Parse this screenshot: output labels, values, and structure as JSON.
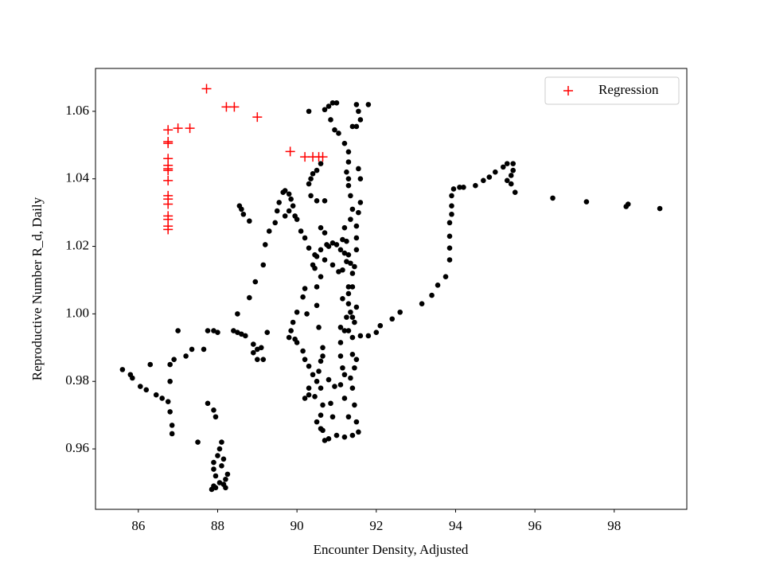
{
  "chart_data": {
    "type": "scatter",
    "xlabel": "Encounter Density, Adjusted",
    "ylabel": "Reproductive Number R_d, Daily",
    "xlim": [
      84.92,
      99.83
    ],
    "ylim": [
      0.9421,
      1.0727
    ],
    "xticks": [
      86,
      88,
      90,
      92,
      94,
      96,
      98
    ],
    "yticks": [
      0.96,
      0.98,
      {
        "value": 1,
        "label": "1.00"
      },
      1.02,
      1.04,
      1.06
    ],
    "legend": "upper right",
    "grid": false,
    "series": [
      {
        "color": "#000000",
        "marker": "o",
        "x": [
          85.6,
          85.8,
          85.85,
          86.05,
          86.2,
          86.3,
          86.45,
          86.6,
          86.75,
          86.8,
          86.85,
          86.85,
          86.8,
          86.8,
          86.9,
          87.0,
          87.2,
          87.35,
          87.5,
          87.65,
          87.75,
          87.75,
          87.9,
          87.95,
          87.9,
          87.9,
          87.95,
          87.9,
          87.85,
          88.0,
          88.05,
          88.1,
          88.05,
          88.15,
          88.2,
          88.25,
          88.15,
          88.1,
          88.2,
          87.95,
          87.9,
          88.0,
          88.4,
          88.5,
          88.6,
          88.7,
          89.0,
          88.9,
          88.9,
          89.0,
          89.15,
          89.1,
          89.25,
          88.5,
          88.8,
          88.95,
          89.15,
          89.2,
          89.3,
          89.45,
          89.5,
          89.55,
          89.65,
          89.7,
          89.8,
          89.85,
          89.9,
          89.95,
          90.0,
          90.1,
          90.2,
          90.3,
          90.45,
          88.55,
          88.6,
          88.65,
          88.8,
          89.7,
          89.8,
          89.8,
          89.85,
          89.9,
          90.0,
          90.15,
          90.2,
          90.45,
          90.4,
          90.5,
          90.6,
          90.8,
          90.9,
          91.0,
          91.1,
          91.2,
          91.25,
          91.35,
          91.4,
          91.3,
          91.3,
          91.25,
          91.3,
          91.4,
          91.6,
          91.8,
          92.0,
          92.1,
          92.4,
          92.6,
          93.15,
          93.4,
          93.55,
          93.75,
          93.85,
          93.85,
          93.85,
          93.85,
          93.9,
          93.9,
          93.9,
          93.95,
          94.1,
          94.2,
          94.5,
          94.7,
          94.85,
          95.0,
          95.2,
          95.3,
          95.45,
          95.45,
          95.4,
          95.3,
          95.4,
          95.5,
          96.45,
          97.3,
          98.3,
          98.35,
          99.15,
          90.3,
          90.35,
          90.4,
          90.5,
          90.6,
          90.5,
          90.7,
          90.35,
          90.6,
          90.7,
          90.75,
          90.3,
          90.7,
          90.8,
          90.9,
          91.0,
          90.85,
          90.95,
          91.05,
          91.2,
          91.3,
          91.3,
          91.25,
          91.3,
          91.3,
          91.35,
          91.4,
          91.35,
          91.2,
          91.15,
          91.4,
          91.5,
          91.55,
          91.5,
          91.8,
          91.6,
          91.6,
          91.55,
          91.6,
          91.55,
          91.5,
          91.5,
          91.5,
          91.4,
          91.5,
          91.45,
          91.4,
          91.4,
          91.5,
          91.45,
          91.35,
          91.4,
          91.45,
          91.5,
          91.55,
          91.4,
          91.2,
          91.0,
          90.8,
          90.7,
          90.65,
          90.6,
          90.5,
          90.6,
          90.65,
          90.6,
          90.5,
          90.4,
          90.3,
          90.2,
          90.3,
          90.45,
          90.55,
          90.6,
          90.65,
          90.65,
          90.3,
          90.2,
          90.15,
          90.0,
          89.95,
          90.25,
          90.55,
          91.1,
          91.1,
          91.1,
          91.15,
          91.2,
          91.1,
          91.2,
          91.3,
          90.9,
          90.85,
          90.95,
          90.8,
          90.5,
          90.5,
          90.6,
          90.7,
          90.9,
          91.05,
          91.15,
          91.25,
          91.3,
          91.45,
          91.35,
          91.2,
          91.15,
          91.3
        ],
        "values": [
          0.9835,
          0.982,
          0.981,
          0.9785,
          0.9775,
          0.985,
          0.976,
          0.975,
          0.974,
          0.971,
          0.967,
          0.9645,
          0.98,
          0.985,
          0.9865,
          0.995,
          0.9875,
          0.9895,
          0.962,
          0.9895,
          0.995,
          0.9735,
          0.9715,
          0.9695,
          0.956,
          0.954,
          0.952,
          0.949,
          0.948,
          0.958,
          0.96,
          0.962,
          0.95,
          0.9495,
          0.951,
          0.9525,
          0.957,
          0.955,
          0.9485,
          0.9485,
          0.995,
          0.9945,
          0.995,
          0.9945,
          0.994,
          0.9935,
          0.9895,
          0.991,
          0.9885,
          0.9865,
          0.9865,
          0.99,
          0.9945,
          1.0,
          1.0048,
          1.0095,
          1.0145,
          1.0205,
          1.0245,
          1.027,
          1.0305,
          1.033,
          1.036,
          1.0365,
          1.0355,
          1.034,
          1.032,
          1.029,
          1.028,
          1.0245,
          1.0225,
          1.0195,
          1.0175,
          1.032,
          1.031,
          1.0295,
          1.0275,
          1.029,
          1.0305,
          0.993,
          0.995,
          0.9975,
          1.0005,
          1.005,
          1.0075,
          1.0135,
          1.0145,
          1.017,
          1.019,
          1.02,
          1.021,
          1.0205,
          1.019,
          1.018,
          1.0215,
          1.015,
          1.012,
          1.008,
          1.003,
          0.999,
          0.995,
          0.993,
          0.9935,
          0.9935,
          0.9945,
          0.9965,
          0.9985,
          1.0005,
          1.003,
          1.0055,
          1.0085,
          1.011,
          1.016,
          1.0195,
          1.023,
          1.027,
          1.0295,
          1.032,
          1.035,
          1.037,
          1.0375,
          1.0375,
          1.038,
          1.0395,
          1.0405,
          1.042,
          1.0435,
          1.0445,
          1.0445,
          1.0425,
          1.041,
          1.0395,
          1.0385,
          1.036,
          1.0343,
          1.0332,
          1.0318,
          1.0325,
          1.0312,
          1.0385,
          1.04,
          1.0415,
          1.0425,
          1.0445,
          1.0335,
          1.0335,
          1.035,
          1.0255,
          1.024,
          1.0205,
          1.06,
          1.0605,
          1.0615,
          1.0625,
          1.0625,
          1.0575,
          1.0545,
          1.0535,
          1.0505,
          1.048,
          1.045,
          1.042,
          1.04,
          1.038,
          1.035,
          1.031,
          1.028,
          1.0255,
          1.022,
          1.0555,
          1.0555,
          1.06,
          1.062,
          1.062,
          1.0575,
          1.04,
          1.043,
          1.033,
          1.03,
          1.026,
          1.0225,
          1.019,
          1.008,
          1.002,
          0.9975,
          0.999,
          0.988,
          0.9865,
          0.984,
          0.981,
          0.978,
          0.973,
          0.968,
          0.965,
          0.964,
          0.9635,
          0.964,
          0.963,
          0.9625,
          0.9655,
          0.966,
          0.968,
          0.97,
          0.973,
          0.978,
          0.98,
          0.982,
          0.978,
          0.975,
          0.976,
          0.9755,
          0.983,
          0.986,
          0.9875,
          0.99,
          0.9845,
          0.9865,
          0.989,
          0.9915,
          0.9925,
          1.0,
          0.996,
          0.996,
          0.9915,
          0.9875,
          0.984,
          0.982,
          0.979,
          0.975,
          0.9695,
          0.9695,
          0.9735,
          0.9785,
          0.9805,
          1.0025,
          1.008,
          1.011,
          1.016,
          1.0145,
          1.0125,
          1.013,
          1.0155,
          1.0175,
          1.014,
          1.0005,
          0.995,
          1.0045,
          1.006
        ]
      },
      {
        "name": "Regression",
        "color": "#ff0000",
        "marker": "+",
        "x": [
          86.75,
          86.75,
          86.75,
          86.75,
          86.75,
          86.75,
          86.75,
          86.75,
          86.75,
          86.75,
          86.75,
          86.75,
          86.75,
          86.75,
          86.75,
          87.0,
          87.3,
          87.72,
          88.22,
          88.42,
          89.0,
          89.83,
          90.2,
          90.4,
          90.55,
          90.65
        ],
        "values": [
          1.0545,
          1.051,
          1.0505,
          1.046,
          1.044,
          1.043,
          1.0425,
          1.0395,
          1.035,
          1.034,
          1.0325,
          1.029,
          1.028,
          1.026,
          1.025,
          1.055,
          1.055,
          1.0667,
          1.0613,
          1.0613,
          1.0583,
          1.0481,
          1.0465,
          1.0465,
          1.0465,
          1.0465
        ]
      }
    ]
  }
}
